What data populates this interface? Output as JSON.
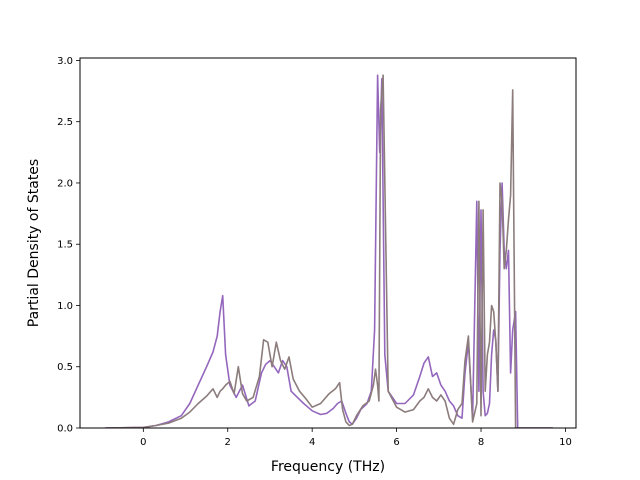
{
  "chart_data": {
    "type": "line",
    "title": "",
    "xlabel": "Frequency (THz)",
    "ylabel": "Partial Density of States",
    "xlim": [
      -1.5,
      10.25
    ],
    "ylim": [
      0,
      3.02
    ],
    "xticks": [
      0,
      2,
      4,
      6,
      8,
      10
    ],
    "yticks": [
      0.0,
      0.5,
      1.0,
      1.5,
      2.0,
      2.5,
      3.0
    ],
    "xtick_labels": [
      "0",
      "2",
      "4",
      "6",
      "8",
      "10"
    ],
    "ytick_labels": [
      "0.0",
      "0.5",
      "1.0",
      "1.5",
      "2.0",
      "2.5",
      "3.0"
    ],
    "grid": false,
    "legend": "none",
    "series": [
      {
        "color": "#9467bd",
        "x": [
          -0.9,
          0.0,
          0.3,
          0.6,
          0.9,
          1.1,
          1.3,
          1.5,
          1.65,
          1.75,
          1.82,
          1.88,
          1.95,
          2.05,
          2.2,
          2.35,
          2.5,
          2.65,
          2.8,
          2.9,
          3.0,
          3.1,
          3.2,
          3.3,
          3.4,
          3.5,
          3.65,
          3.8,
          4.0,
          4.2,
          4.35,
          4.5,
          4.6,
          4.7,
          4.8,
          4.88,
          4.95,
          5.05,
          5.15,
          5.3,
          5.4,
          5.48,
          5.55,
          5.6,
          5.65,
          5.72,
          5.8,
          6.0,
          6.2,
          6.4,
          6.55,
          6.65,
          6.75,
          6.85,
          6.95,
          7.05,
          7.15,
          7.25,
          7.35,
          7.45,
          7.55,
          7.62,
          7.7,
          7.8,
          7.9,
          7.95,
          8.0,
          8.05,
          8.1,
          8.15,
          8.2,
          8.25,
          8.3,
          8.35,
          8.4,
          8.45,
          8.5,
          8.55,
          8.6,
          8.65,
          8.7,
          8.75,
          8.82,
          8.87,
          8.9,
          9.0,
          9.7
        ],
        "y": [
          0.0,
          0.005,
          0.02,
          0.05,
          0.1,
          0.2,
          0.35,
          0.5,
          0.62,
          0.75,
          0.95,
          1.08,
          0.6,
          0.35,
          0.25,
          0.35,
          0.18,
          0.22,
          0.45,
          0.52,
          0.55,
          0.5,
          0.45,
          0.55,
          0.5,
          0.3,
          0.25,
          0.2,
          0.14,
          0.11,
          0.12,
          0.16,
          0.2,
          0.22,
          0.12,
          0.05,
          0.03,
          0.08,
          0.15,
          0.2,
          0.3,
          0.8,
          2.88,
          2.25,
          2.85,
          0.6,
          0.3,
          0.2,
          0.2,
          0.27,
          0.42,
          0.53,
          0.58,
          0.42,
          0.45,
          0.35,
          0.3,
          0.22,
          0.18,
          0.1,
          0.08,
          0.45,
          0.7,
          0.08,
          1.85,
          0.3,
          1.78,
          0.3,
          0.1,
          0.12,
          0.2,
          0.6,
          0.8,
          0.72,
          0.3,
          1.45,
          2.0,
          1.45,
          1.3,
          1.45,
          0.45,
          0.8,
          0.95,
          0.0,
          0.0,
          0.0,
          0.0
        ]
      },
      {
        "color": "#8c7c7c",
        "x": [
          -0.9,
          0.0,
          0.3,
          0.6,
          0.9,
          1.1,
          1.3,
          1.5,
          1.65,
          1.75,
          1.82,
          1.88,
          1.95,
          2.05,
          2.15,
          2.25,
          2.35,
          2.45,
          2.6,
          2.75,
          2.85,
          2.95,
          3.05,
          3.15,
          3.25,
          3.35,
          3.45,
          3.55,
          3.7,
          3.85,
          4.0,
          4.2,
          4.4,
          4.55,
          4.65,
          4.72,
          4.8,
          4.88,
          4.95,
          5.05,
          5.2,
          5.35,
          5.45,
          5.5,
          5.55,
          5.58,
          5.62,
          5.68,
          5.8,
          6.0,
          6.2,
          6.4,
          6.55,
          6.65,
          6.75,
          6.85,
          6.95,
          7.05,
          7.15,
          7.25,
          7.35,
          7.45,
          7.55,
          7.62,
          7.7,
          7.8,
          7.9,
          7.95,
          8.0,
          8.05,
          8.1,
          8.15,
          8.2,
          8.25,
          8.3,
          8.35,
          8.4,
          8.45,
          8.5,
          8.55,
          8.6,
          8.65,
          8.7,
          8.75,
          8.82,
          8.87,
          8.9,
          9.0,
          9.7
        ],
        "y": [
          0.0,
          0.005,
          0.02,
          0.04,
          0.08,
          0.13,
          0.2,
          0.26,
          0.32,
          0.25,
          0.3,
          0.32,
          0.35,
          0.38,
          0.28,
          0.5,
          0.28,
          0.22,
          0.25,
          0.42,
          0.72,
          0.7,
          0.5,
          0.7,
          0.55,
          0.48,
          0.58,
          0.4,
          0.3,
          0.24,
          0.17,
          0.2,
          0.28,
          0.32,
          0.37,
          0.15,
          0.05,
          0.02,
          0.03,
          0.1,
          0.18,
          0.22,
          0.35,
          0.48,
          0.35,
          0.22,
          2.6,
          2.88,
          0.3,
          0.17,
          0.13,
          0.15,
          0.22,
          0.25,
          0.32,
          0.25,
          0.22,
          0.27,
          0.22,
          0.08,
          0.03,
          0.15,
          0.2,
          0.55,
          0.75,
          0.05,
          0.2,
          1.85,
          0.1,
          1.78,
          0.3,
          0.6,
          0.7,
          1.0,
          0.95,
          0.7,
          0.3,
          2.0,
          1.85,
          1.3,
          1.45,
          1.7,
          1.9,
          2.76,
          0.0,
          0.0,
          0.0,
          0.0,
          0.0
        ]
      }
    ]
  }
}
